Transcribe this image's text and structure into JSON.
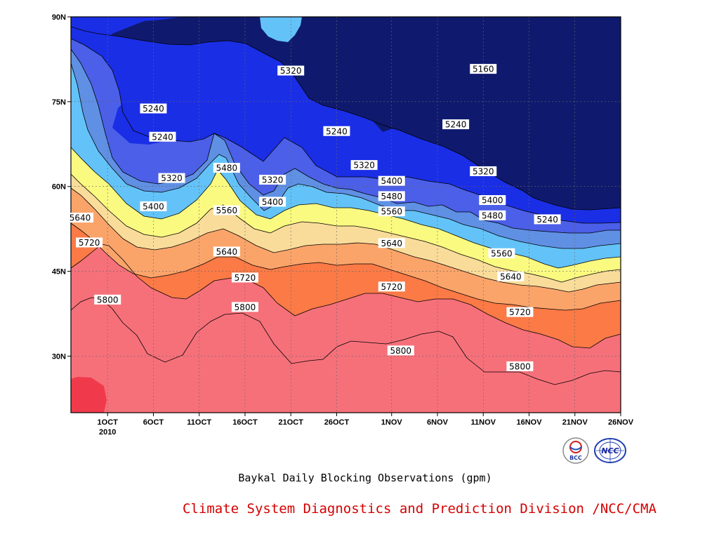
{
  "chart_data": {
    "type": "contour",
    "title": "Baykal Daily Blocking Observations (gpm)",
    "x_tick_labels": [
      "1OCT",
      "6OCT",
      "11OCT",
      "16OCT",
      "21OCT",
      "26OCT",
      "1NOV",
      "6NOV",
      "11NOV",
      "16NOV",
      "21NOV",
      "26NOV"
    ],
    "x_year_label": "2010",
    "y_tick_labels": [
      "30N",
      "45N",
      "60N",
      "75N",
      "90N"
    ],
    "y_range": [
      20,
      90
    ],
    "x_range_days": [
      "2010-09-27",
      "2010-11-26"
    ],
    "contour_levels": [
      5160,
      5240,
      5320,
      5400,
      5480,
      5560,
      5640,
      5720,
      5800
    ],
    "fill_colors": [
      "#0f1a6e",
      "#1a2ee6",
      "#4b5fe8",
      "#5f90e4",
      "#63c3f8",
      "#fafa80",
      "#fadc9a",
      "#fba46a",
      "#fb7a46",
      "#f6707a",
      "#f03a4c"
    ],
    "contour_labels": [
      {
        "value": "5320",
        "x": "2010-10-21",
        "y": 80.5
      },
      {
        "value": "5160",
        "x": "2010-11-11",
        "y": 80.8
      },
      {
        "value": "5240",
        "x": "2010-10-06",
        "y": 73.8
      },
      {
        "value": "5240",
        "x": "2010-10-07",
        "y": 68.8
      },
      {
        "value": "5240",
        "x": "2010-10-26",
        "y": 69.8
      },
      {
        "value": "5240",
        "x": "2010-11-08",
        "y": 71.0
      },
      {
        "value": "5320",
        "x": "2010-10-08",
        "y": 61.5
      },
      {
        "value": "5320",
        "x": "2010-10-19",
        "y": 61.2
      },
      {
        "value": "5320",
        "x": "2010-10-29",
        "y": 63.8
      },
      {
        "value": "5320",
        "x": "2010-11-11",
        "y": 62.7
      },
      {
        "value": "5400",
        "x": "2010-10-06",
        "y": 56.5
      },
      {
        "value": "5400",
        "x": "2010-10-19",
        "y": 57.3
      },
      {
        "value": "5400",
        "x": "2010-11-01",
        "y": 61.0
      },
      {
        "value": "5400",
        "x": "2010-11-12",
        "y": 57.6
      },
      {
        "value": "5480",
        "x": "2010-10-14",
        "y": 63.3
      },
      {
        "value": "5480",
        "x": "2010-11-01",
        "y": 58.3
      },
      {
        "value": "5480",
        "x": "2010-11-12",
        "y": 54.9
      },
      {
        "value": "5560",
        "x": "2010-10-14",
        "y": 55.8
      },
      {
        "value": "5560",
        "x": "2010-11-01",
        "y": 55.6
      },
      {
        "value": "5560",
        "x": "2010-11-13",
        "y": 48.2
      },
      {
        "value": "5640",
        "x": "2010-09-28",
        "y": 54.5
      },
      {
        "value": "5640",
        "x": "2010-10-14",
        "y": 48.5
      },
      {
        "value": "5640",
        "x": "2010-11-01",
        "y": 50.0
      },
      {
        "value": "5640",
        "x": "2010-11-14",
        "y": 44.1
      },
      {
        "value": "5720",
        "x": "2010-09-29",
        "y": 50.1
      },
      {
        "value": "5720",
        "x": "2010-10-16",
        "y": 43.9
      },
      {
        "value": "5720",
        "x": "2010-11-01",
        "y": 42.3
      },
      {
        "value": "5720",
        "x": "2010-11-15",
        "y": 37.8
      },
      {
        "value": "5240",
        "x": "2010-11-18",
        "y": 54.2
      },
      {
        "value": "5800",
        "x": "2010-10-01",
        "y": 40.0
      },
      {
        "value": "5800",
        "x": "2010-10-16",
        "y": 38.7
      },
      {
        "value": "5800",
        "x": "2010-11-02",
        "y": 31.0
      },
      {
        "value": "5800",
        "x": "2010-11-15",
        "y": 28.2
      }
    ]
  },
  "footer": {
    "credit": "Climate System Diagnostics and Prediction Division /NCC/CMA",
    "logo_left_text": "BCC",
    "logo_right_text": "NCC"
  }
}
